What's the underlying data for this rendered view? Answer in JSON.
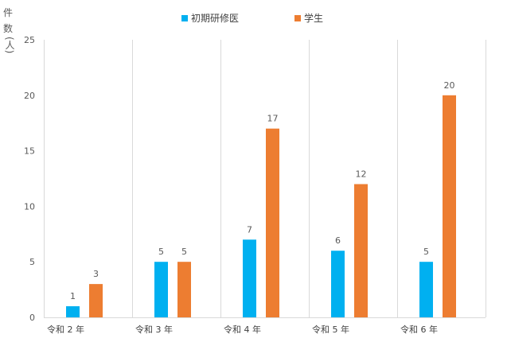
{
  "chart_data": {
    "type": "bar",
    "title": "",
    "ylabel": "件数(人)",
    "xlabel": "",
    "categories": [
      "令和 2 年",
      "令和 3 年",
      "令和 4 年",
      "令和 5 年",
      "令和 6 年"
    ],
    "series": [
      {
        "name": "初期研修医",
        "color": "#00B0F0",
        "values": [
          1,
          5,
          7,
          6,
          5
        ]
      },
      {
        "name": "学生",
        "color": "#ED7D31",
        "values": [
          3,
          5,
          17,
          12,
          20
        ]
      }
    ],
    "ylim": [
      0,
      25
    ],
    "yticks": [
      0,
      5,
      10,
      15,
      20,
      25
    ],
    "grid": "vertical category separators",
    "legend": "top-center",
    "data_labels": true
  }
}
